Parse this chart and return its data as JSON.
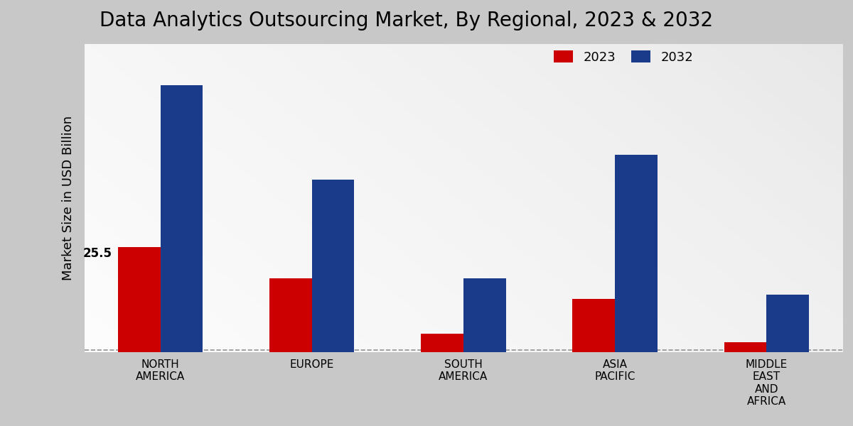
{
  "title": "Data Analytics Outsourcing Market, By Regional, 2023 & 2032",
  "ylabel": "Market Size in USD Billion",
  "categories": [
    "NORTH\nAMERICA",
    "EUROPE",
    "SOUTH\nAMERICA",
    "ASIA\nPACIFIC",
    "MIDDLE\nEAST\nAND\nAFRICA"
  ],
  "values_2023": [
    25.5,
    18.0,
    4.5,
    13.0,
    2.5
  ],
  "values_2032": [
    65.0,
    42.0,
    18.0,
    48.0,
    14.0
  ],
  "color_2023": "#cc0000",
  "color_2032": "#1a3a8a",
  "annotation_2023_label": "25.5",
  "bar_width": 0.28,
  "ylim": [
    0,
    75
  ],
  "legend_labels": [
    "2023",
    "2032"
  ],
  "title_fontsize": 20,
  "axis_label_fontsize": 13,
  "tick_fontsize": 11,
  "legend_fontsize": 13
}
